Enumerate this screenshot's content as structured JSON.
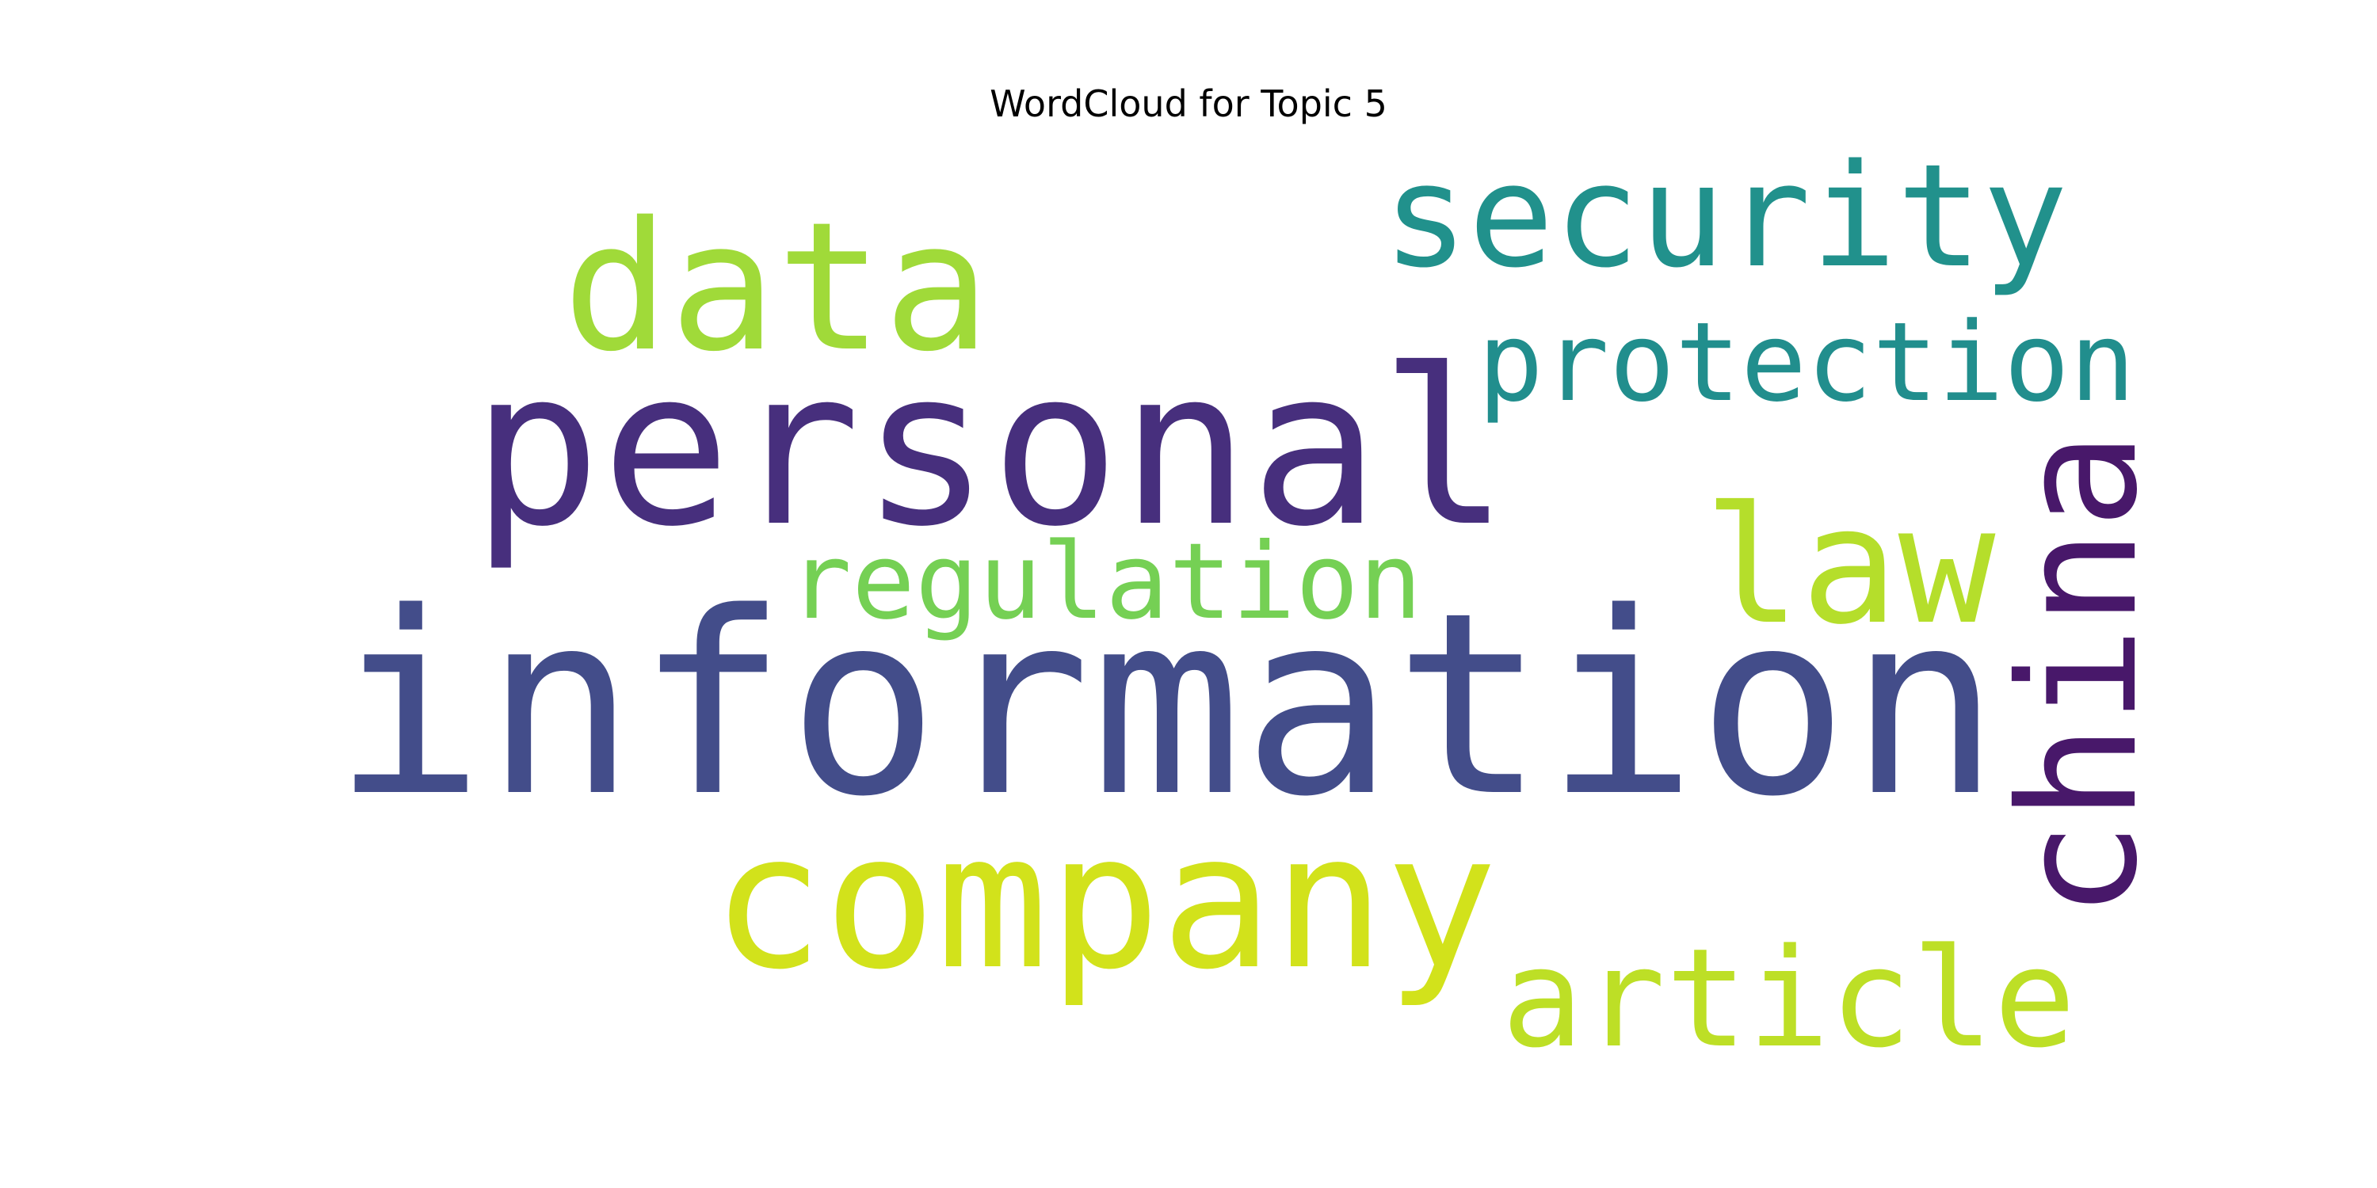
{
  "chart_data": {
    "type": "wordcloud",
    "title": "WordCloud for Topic 5",
    "colormap": "viridis",
    "background": "#ffffff",
    "words": [
      {
        "text": "information",
        "weight": 1.0,
        "color": "#434d8a",
        "orientation": "horizontal"
      },
      {
        "text": "personal",
        "weight": 0.8,
        "color": "#472f7d",
        "orientation": "horizontal"
      },
      {
        "text": "company",
        "weight": 0.66,
        "color": "#d2e21b",
        "orientation": "horizontal"
      },
      {
        "text": "data",
        "weight": 0.63,
        "color": "#a0da39",
        "orientation": "horizontal"
      },
      {
        "text": "china",
        "weight": 0.63,
        "color": "#48186a",
        "orientation": "vertical"
      },
      {
        "text": "law",
        "weight": 0.55,
        "color": "#b5de2b",
        "orientation": "horizontal"
      },
      {
        "text": "security",
        "weight": 0.53,
        "color": "#21918c",
        "orientation": "horizontal"
      },
      {
        "text": "article",
        "weight": 0.5,
        "color": "#bddf26",
        "orientation": "horizontal"
      },
      {
        "text": "protection",
        "weight": 0.47,
        "color": "#218e8d",
        "orientation": "horizontal"
      },
      {
        "text": "regulation",
        "weight": 0.37,
        "color": "#75d054",
        "orientation": "horizontal"
      }
    ]
  }
}
